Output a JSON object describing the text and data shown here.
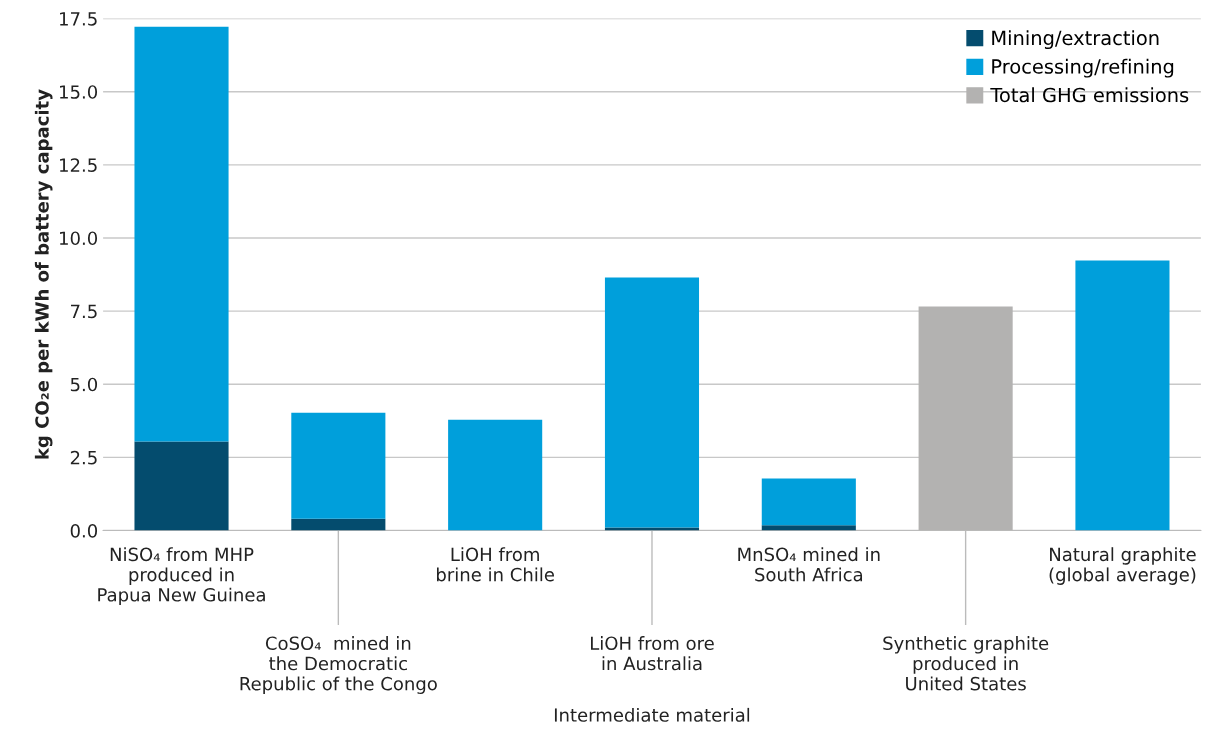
{
  "chart_data": {
    "type": "bar",
    "stacked": true,
    "xlabel": "Intermediate material",
    "ylabel": "kg CO₂e per kWh of battery capacity",
    "categories": [
      "NiSO₄ from MHP\nproduced in\nPapua New Guinea",
      "CoSO₄  mined in\nthe Democratic\nRepublic of the Congo",
      "LiOH from\nbrine in Chile",
      "LiOH from ore\nin Australia",
      "MnSO₄ mined in\nSouth Africa",
      "Synthetic graphite\nproduced in\nUnited States",
      "Natural graphite\n(global average)"
    ],
    "series": [
      {
        "name": "Mining/extraction",
        "color": "#044c6e",
        "values": [
          3.04,
          0.4,
          null,
          0.1,
          0.18,
          null,
          null
        ]
      },
      {
        "name": "Processing/refining",
        "color": "#009fdb",
        "values": [
          14.18,
          3.63,
          3.79,
          8.55,
          1.6,
          null,
          9.23
        ]
      },
      {
        "name": "Total GHG emissions",
        "color": "#b3b2b1",
        "values": [
          null,
          null,
          null,
          null,
          null,
          7.66,
          null
        ]
      }
    ],
    "ylim": [
      0,
      17.5
    ],
    "yticks": [
      {
        "value": 0,
        "label": "0.0"
      },
      {
        "value": 2.5,
        "label": "2.5"
      },
      {
        "value": 5,
        "label": "5.0"
      },
      {
        "value": 7.5,
        "label": "7.5"
      },
      {
        "value": 10,
        "label": "10.0"
      },
      {
        "value": 12.5,
        "label": "12.5"
      },
      {
        "value": 15,
        "label": "15.0"
      },
      {
        "value": 17.5,
        "label": "17.5"
      }
    ],
    "grid": "y",
    "legend": "top right"
  }
}
